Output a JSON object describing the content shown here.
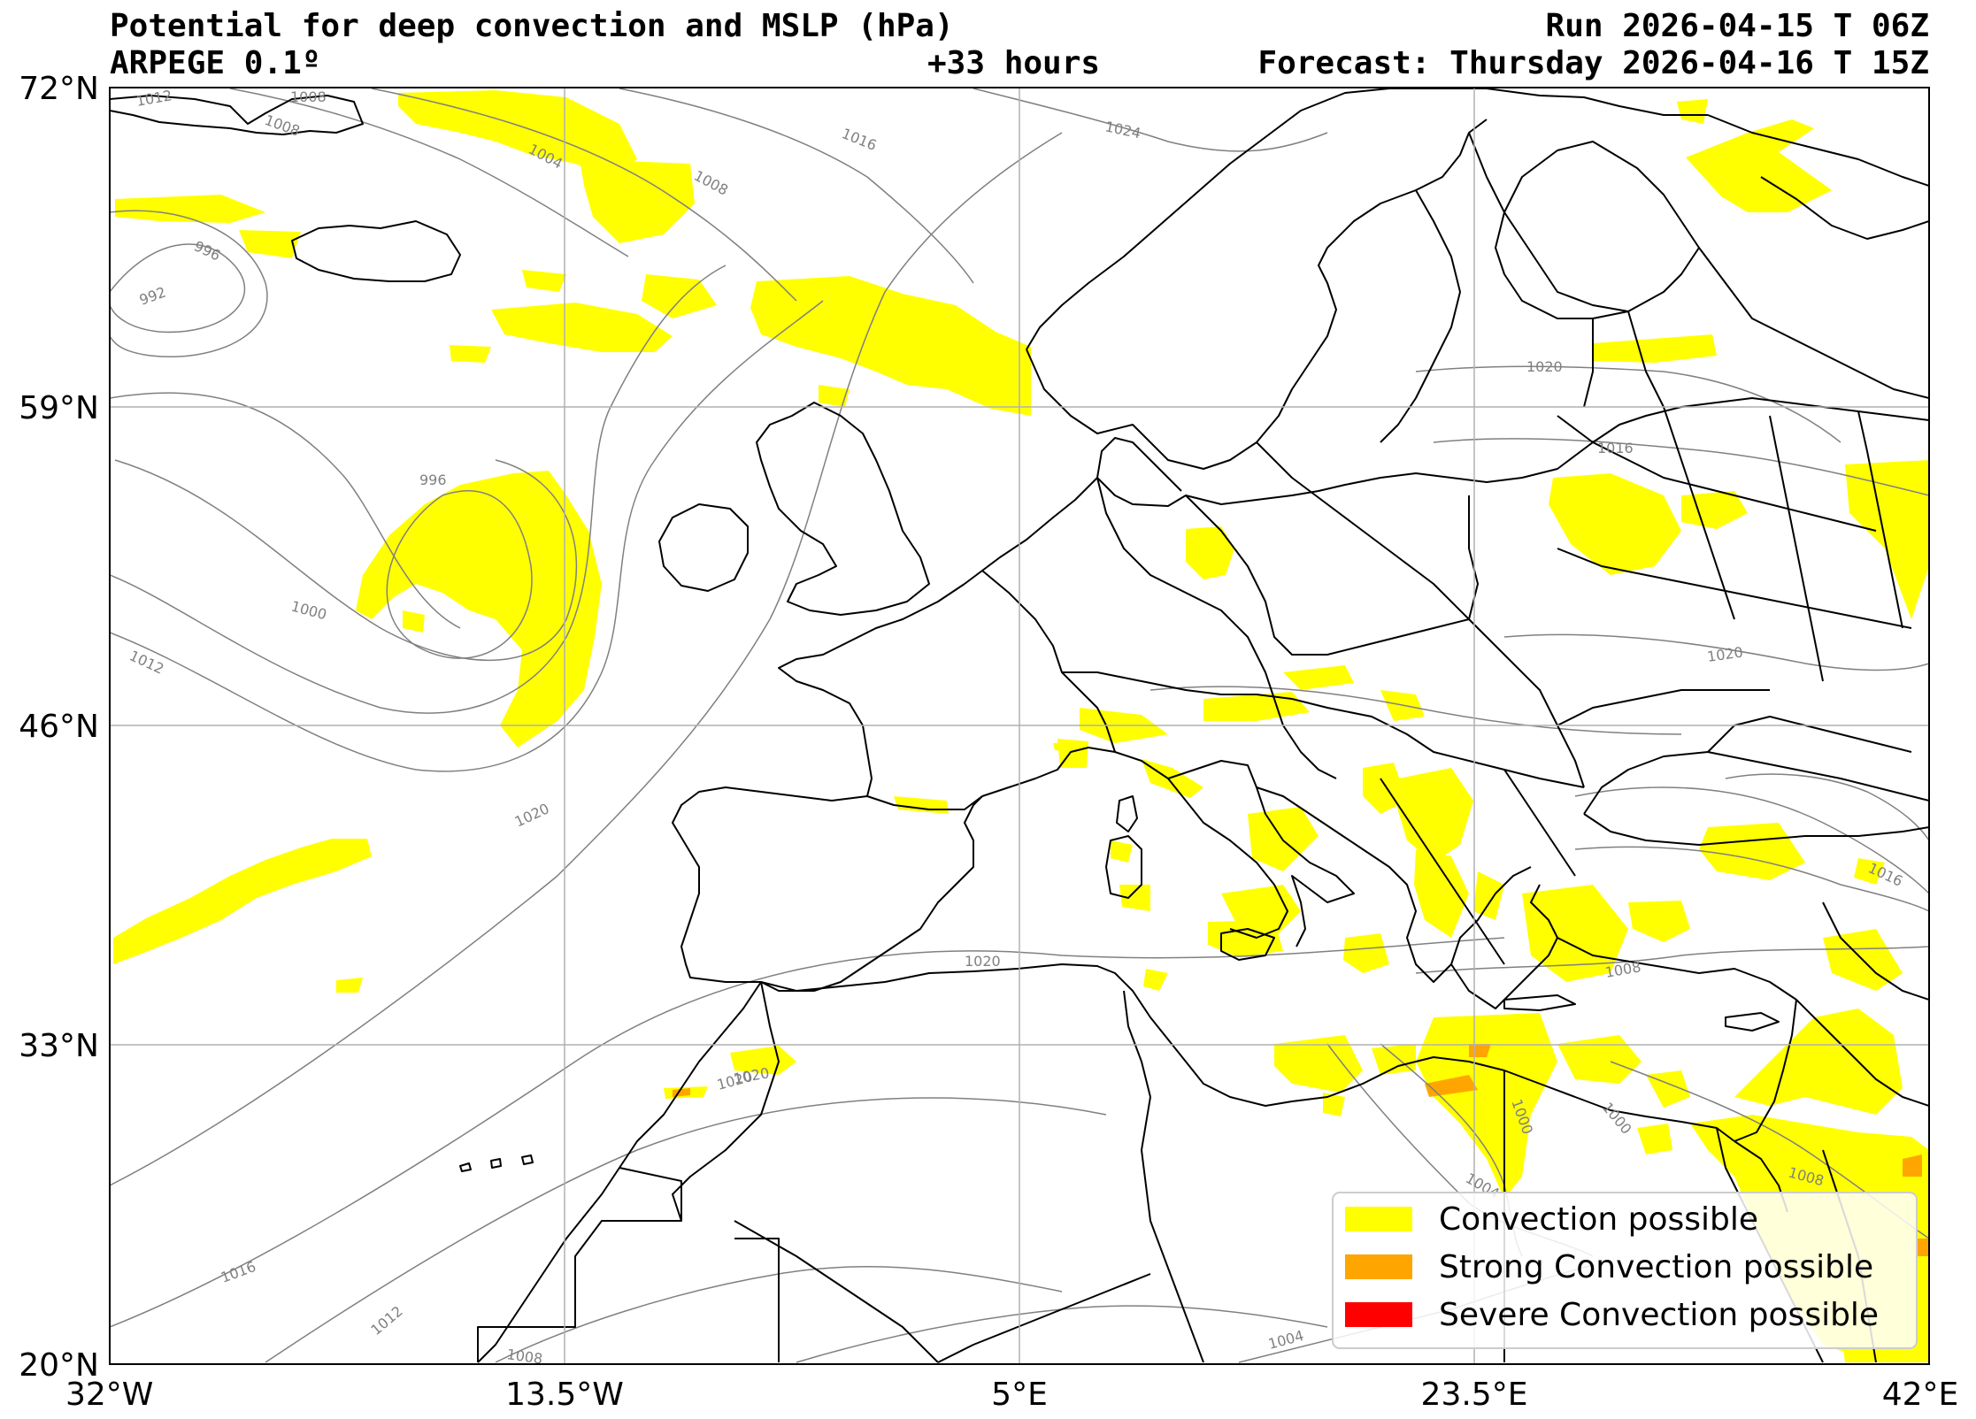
{
  "header": {
    "title": "Potential for deep convection and MSLP (hPa)",
    "model": "ARPEGE 0.1º",
    "lead_time": "+33 hours",
    "run": "Run 2026-04-15 T 06Z",
    "forecast": "Forecast: Thursday 2026-04-16 T 15Z"
  },
  "axes": {
    "lat_ticks": [
      "72°N",
      "59°N",
      "46°N",
      "33°N",
      "20°N"
    ],
    "lon_ticks": [
      "32°W",
      "13.5°W",
      "5°E",
      "23.5°E",
      "42°E"
    ],
    "lon_range": [
      -32,
      42
    ],
    "lat_range": [
      20,
      72
    ]
  },
  "isobar_labels": [
    "1012",
    "1008",
    "1008",
    "1004",
    "1016",
    "1008",
    "1024",
    "996",
    "992",
    "996",
    "1000",
    "1012",
    "1020",
    "1020",
    "1020",
    "1016",
    "1020",
    "1020",
    "1016",
    "1008",
    "1000",
    "1000",
    "1004",
    "1008",
    "1016",
    "1012",
    "1008",
    "1004",
    "1020"
  ],
  "legend": {
    "items": [
      {
        "label": "Convection possible",
        "color": "#ffff00"
      },
      {
        "label": "Strong Convection possible",
        "color": "#ffa500"
      },
      {
        "label": "Severe Convection possible",
        "color": "#ff0000"
      }
    ]
  },
  "colors": {
    "isobar": "#808080",
    "coast": "#000000",
    "grid": "#b0b0b0"
  }
}
